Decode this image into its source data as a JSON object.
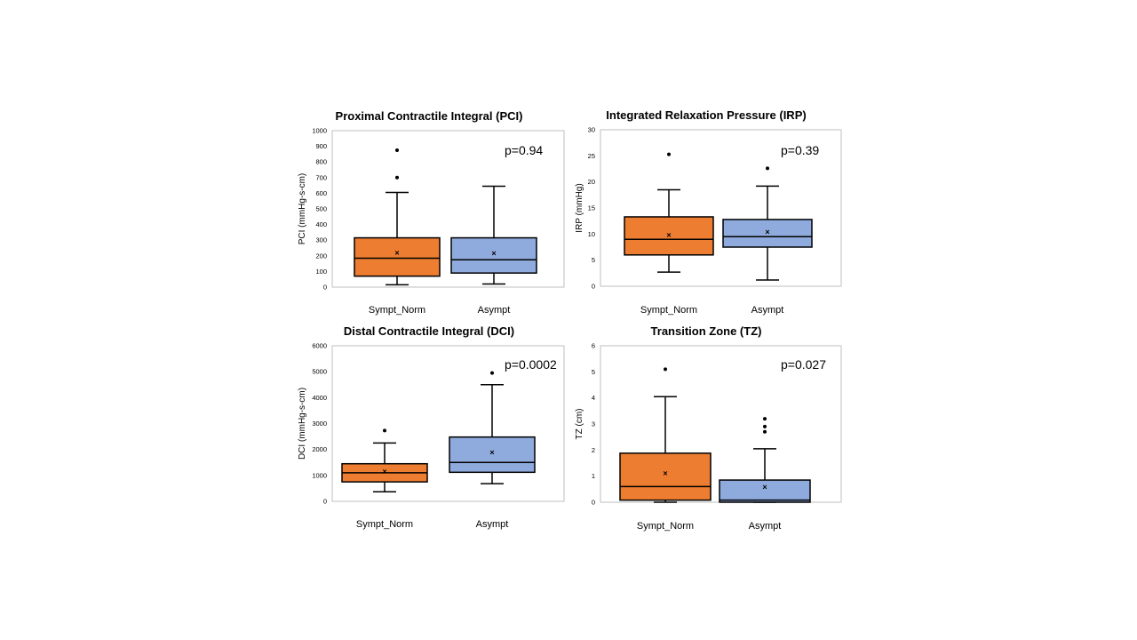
{
  "chart_data": [
    {
      "type": "box",
      "title": "Proximal Contractile Integral (PCI)",
      "ylabel": "PCI (mmHg-s-cm)",
      "annotation": "p=0.94",
      "ylim": [
        0,
        1000
      ],
      "yticks": [
        0,
        100,
        200,
        300,
        400,
        500,
        600,
        700,
        800,
        900,
        1000
      ],
      "categories": [
        "Sympt_Norm",
        "Asympt"
      ],
      "series": [
        {
          "category": "Sympt_Norm",
          "color": "#ED7D31",
          "min": 15,
          "q1": 70,
          "median": 185,
          "q3": 315,
          "max": 605,
          "mean": 220,
          "outliers": [
            700,
            875
          ]
        },
        {
          "category": "Asympt",
          "color": "#8FAADC",
          "min": 20,
          "q1": 90,
          "median": 175,
          "q3": 315,
          "max": 645,
          "mean": 215,
          "outliers": []
        }
      ]
    },
    {
      "type": "box",
      "title": "Integrated Relaxation Pressure (IRP)",
      "ylabel": "IRP (mmHg)",
      "annotation": "p=0.39",
      "ylim": [
        0,
        30
      ],
      "yticks": [
        0,
        5,
        10,
        15,
        20,
        25,
        30
      ],
      "categories": [
        "Sympt_Norm",
        "Asympt"
      ],
      "series": [
        {
          "category": "Sympt_Norm",
          "color": "#ED7D31",
          "min": 2.7,
          "q1": 6.0,
          "median": 9.0,
          "q3": 13.3,
          "max": 18.5,
          "mean": 9.8,
          "outliers": [
            25.3
          ]
        },
        {
          "category": "Asympt",
          "color": "#8FAADC",
          "min": 1.2,
          "q1": 7.5,
          "median": 9.5,
          "q3": 12.8,
          "max": 19.2,
          "mean": 10.4,
          "outliers": [
            22.6
          ]
        }
      ]
    },
    {
      "type": "box",
      "title": "Distal Contractile Integral (DCI)",
      "ylabel": "DCI (mmHg-s-cm)",
      "annotation": "p=0.0002",
      "ylim": [
        0,
        6000
      ],
      "yticks": [
        0,
        1000,
        2000,
        3000,
        4000,
        5000,
        6000
      ],
      "categories": [
        "Sympt_Norm",
        "Asympt"
      ],
      "series": [
        {
          "category": "Sympt_Norm",
          "color": "#ED7D31",
          "min": 370,
          "q1": 750,
          "median": 1100,
          "q3": 1450,
          "max": 2250,
          "mean": 1150,
          "outliers": [
            2730
          ]
        },
        {
          "category": "Asympt",
          "color": "#8FAADC",
          "min": 680,
          "q1": 1120,
          "median": 1500,
          "q3": 2480,
          "max": 4500,
          "mean": 1880,
          "outliers": [
            4950
          ]
        }
      ]
    },
    {
      "type": "box",
      "title": "Transition Zone (TZ)",
      "ylabel": "TZ (cm)",
      "annotation": "p=0.027",
      "ylim": [
        0,
        6
      ],
      "yticks": [
        0,
        1,
        2,
        3,
        4,
        5,
        6
      ],
      "categories": [
        "Sympt_Norm",
        "Asympt"
      ],
      "series": [
        {
          "category": "Sympt_Norm",
          "color": "#ED7D31",
          "min": 0,
          "q1": 0.08,
          "median": 0.6,
          "q3": 1.88,
          "max": 4.05,
          "mean": 1.1,
          "outliers": [
            5.1
          ]
        },
        {
          "category": "Asympt",
          "color": "#8FAADC",
          "min": 0,
          "q1": 0,
          "median": 0.08,
          "q3": 0.85,
          "max": 2.05,
          "mean": 0.58,
          "outliers": [
            2.7,
            2.9,
            3.2
          ]
        }
      ]
    }
  ]
}
